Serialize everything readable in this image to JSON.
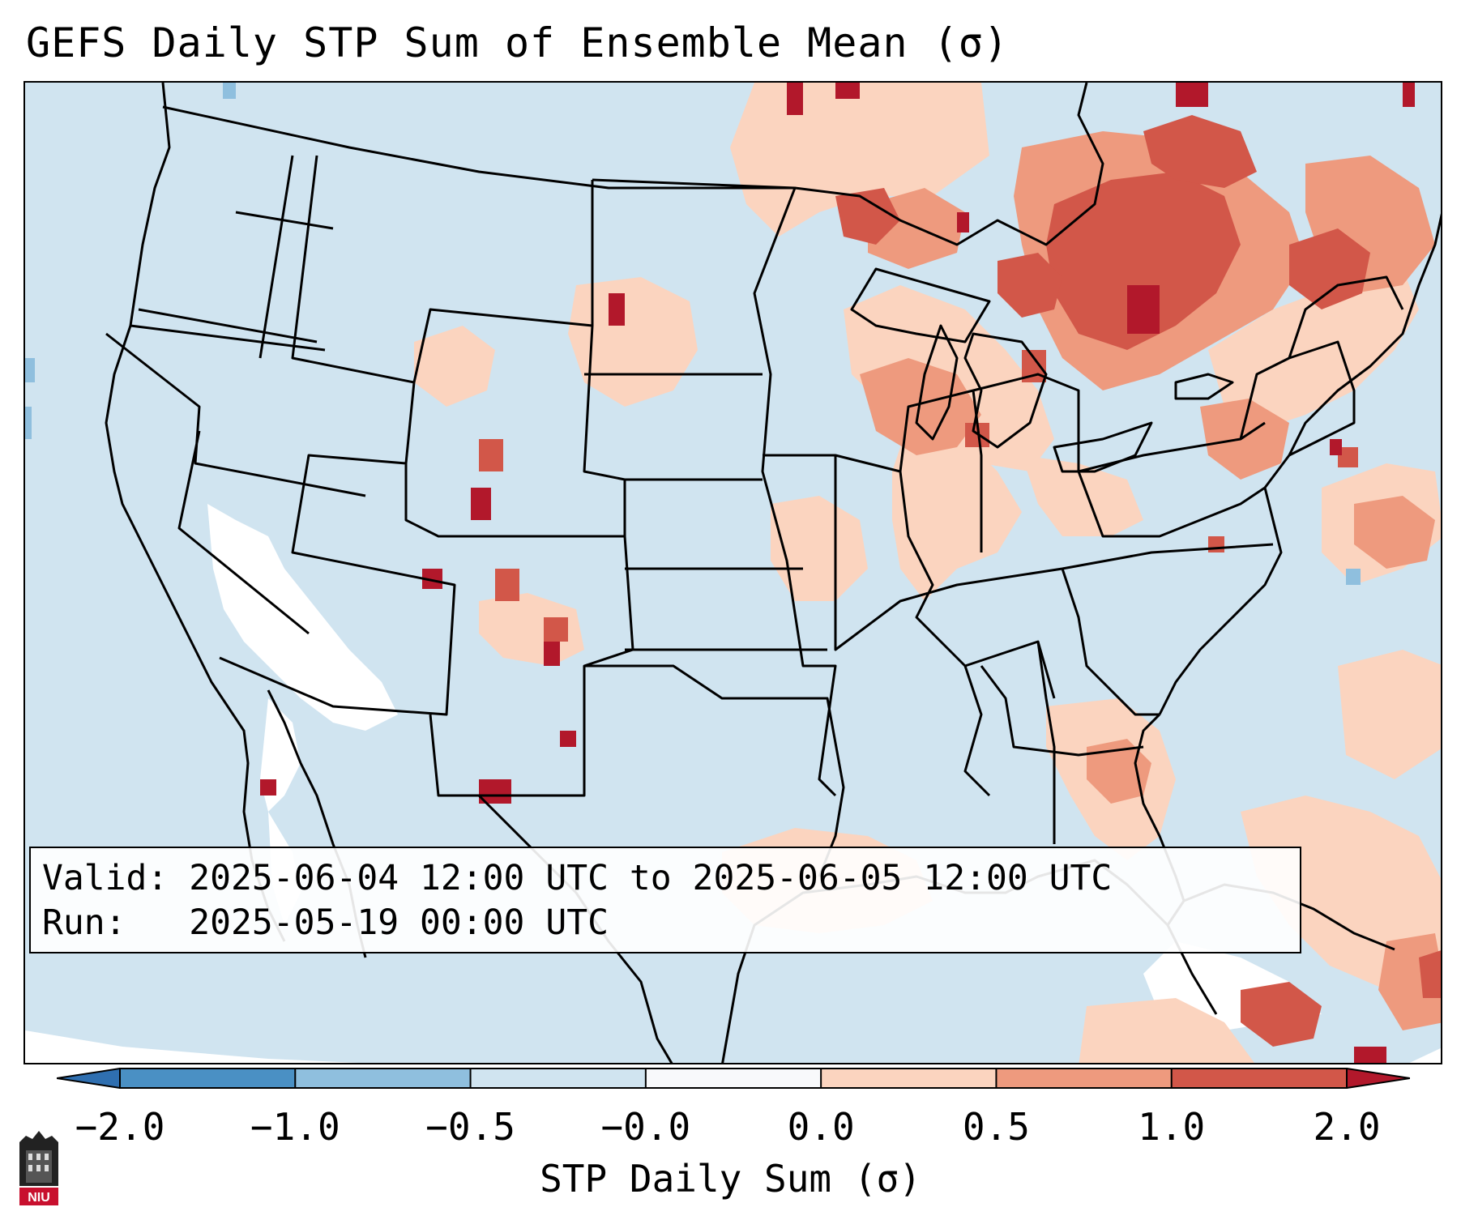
{
  "title": "GEFS Daily STP Sum of Ensemble Mean (σ)",
  "info": {
    "valid_label": "Valid:",
    "valid_value": "2025-06-04 12:00 UTC to 2025-06-05 12:00 UTC",
    "run_label": "Run:",
    "run_value": "2025-05-19 00:00 UTC"
  },
  "colorbar": {
    "label": "STP Daily Sum (σ)",
    "ticks": [
      "−2.0",
      "−1.0",
      "−0.5",
      "−0.0",
      "0.0",
      "0.5",
      "1.0",
      "2.0"
    ],
    "bins": [
      {
        "from": -2.0,
        "to": -1.0,
        "color": "#4a90c4"
      },
      {
        "from": -1.0,
        "to": -0.5,
        "color": "#8fbfde"
      },
      {
        "from": -0.5,
        "to": -0.0,
        "color": "#d0e4f0"
      },
      {
        "from": -0.0,
        "to": 0.0,
        "color": "#f8f9fb"
      },
      {
        "from": 0.0,
        "to": 0.5,
        "color": "#fbd4bf"
      },
      {
        "from": 0.5,
        "to": 1.0,
        "color": "#ee9a7e"
      },
      {
        "from": 1.0,
        "to": 2.0,
        "color": "#d25749"
      }
    ],
    "under_color": "#2f6fb0",
    "over_color": "#b2182b"
  },
  "logo": {
    "text": "NIU",
    "icon": "niu-logo-icon"
  },
  "colors": {
    "ocean": "#d0e4f0",
    "near_zero": "#ffffff",
    "light_pos": "#fbd4bf",
    "mid_pos": "#ee9a7e",
    "strong_pos": "#d25749",
    "max_pos": "#b2182b",
    "neg": "#8fbfde"
  }
}
